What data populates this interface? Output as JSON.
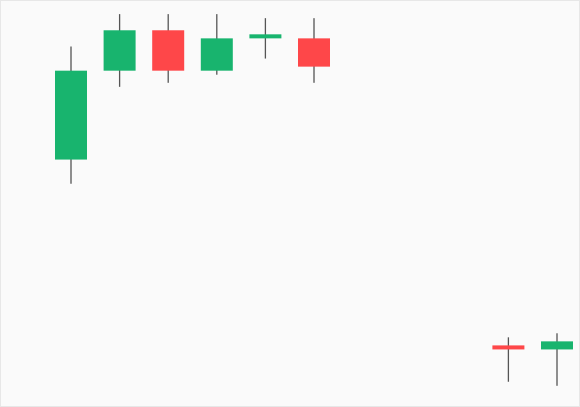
{
  "chart_data": {
    "type": "candlestick",
    "title": "",
    "xlabel": "",
    "ylabel": "",
    "x_axis_visible": false,
    "y_axis_visible": false,
    "grid": false,
    "legend": "none",
    "ylim": [
      0,
      100
    ],
    "colors": {
      "up": "#18b46e",
      "down": "#fe4749",
      "wick": "#555555",
      "background": "#fafafa"
    },
    "candles": [
      {
        "slot": 1,
        "open": 61,
        "close": 83,
        "high": 89,
        "low": 55
      },
      {
        "slot": 2,
        "open": 83,
        "close": 93,
        "high": 97,
        "low": 79
      },
      {
        "slot": 3,
        "open": 93,
        "close": 83,
        "high": 97,
        "low": 80
      },
      {
        "slot": 4,
        "open": 83,
        "close": 91,
        "high": 97,
        "low": 82
      },
      {
        "slot": 5,
        "open": 91,
        "close": 92,
        "high": 96,
        "low": 86
      },
      {
        "slot": 6,
        "open": 91,
        "close": 84,
        "high": 96,
        "low": 80
      },
      {
        "slot": 10,
        "open": 15,
        "close": 14,
        "high": 17,
        "low": 6
      },
      {
        "slot": 11,
        "open": 14,
        "close": 16,
        "high": 18,
        "low": 5
      },
      {
        "slot": 12,
        "open": 16,
        "close": 11,
        "high": 16.5,
        "low": 10
      },
      {
        "slot": 13,
        "open": 11,
        "close": 14,
        "high": 19,
        "low": 8
      }
    ]
  }
}
